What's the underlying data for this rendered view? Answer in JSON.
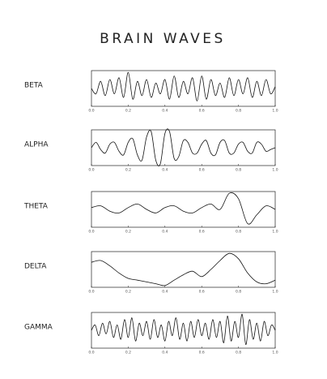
{
  "title": "BRAIN WAVES",
  "chart_data": [
    {
      "type": "line",
      "title": "BETA",
      "color": "#111",
      "xlim": [
        0,
        1
      ],
      "ylim": [
        -1,
        1
      ],
      "xticks": [
        {
          "value": 0,
          "label": "0.0"
        },
        0.2,
        0.4,
        0.6,
        0.8,
        {
          "value": 1,
          "label": "1.0"
        }
      ],
      "x": [
        0,
        0.025,
        0.05,
        0.075,
        0.1,
        0.125,
        0.15,
        0.175,
        0.2,
        0.225,
        0.25,
        0.275,
        0.3,
        0.325,
        0.35,
        0.375,
        0.4,
        0.425,
        0.45,
        0.475,
        0.5,
        0.525,
        0.55,
        0.575,
        0.6,
        0.625,
        0.65,
        0.675,
        0.7,
        0.725,
        0.75,
        0.775,
        0.8,
        0.825,
        0.85,
        0.875,
        0.9,
        0.925,
        0.95,
        0.975,
        1
      ],
      "values": [
        0,
        -0.3,
        0.4,
        -0.4,
        0.5,
        -0.3,
        0.6,
        -0.5,
        0.9,
        -0.6,
        0.4,
        -0.4,
        0.5,
        -0.5,
        0.3,
        -0.3,
        0.5,
        -0.6,
        0.7,
        -0.5,
        0.4,
        -0.3,
        0.6,
        -0.7,
        0.7,
        -0.6,
        0.5,
        -0.4,
        0.3,
        -0.5,
        0.6,
        -0.4,
        0.5,
        -0.3,
        0.6,
        -0.5,
        0.4,
        -0.4,
        0.5,
        -0.3,
        0.1
      ]
    },
    {
      "type": "line",
      "title": "ALPHA",
      "color": "#111",
      "xlim": [
        0,
        1
      ],
      "ylim": [
        -1,
        1
      ],
      "xticks": [
        {
          "value": 0,
          "label": "0.0"
        },
        0.2,
        0.4,
        0.6,
        0.8,
        {
          "value": 1,
          "label": "1.0"
        }
      ],
      "x": [
        0,
        0.025,
        0.05,
        0.075,
        0.1,
        0.125,
        0.15,
        0.175,
        0.2,
        0.225,
        0.25,
        0.275,
        0.3,
        0.325,
        0.35,
        0.375,
        0.4,
        0.425,
        0.45,
        0.475,
        0.5,
        0.525,
        0.55,
        0.575,
        0.6,
        0.625,
        0.65,
        0.675,
        0.7,
        0.725,
        0.75,
        0.775,
        0.8,
        0.825,
        0.85,
        0.875,
        0.9,
        0.925,
        0.95,
        0.975,
        1
      ],
      "values": [
        0,
        0.3,
        -0.1,
        -0.3,
        0.2,
        0.3,
        -0.2,
        -0.4,
        0.3,
        0.5,
        -0.4,
        -0.7,
        0.6,
        0.9,
        -0.7,
        -0.9,
        0.8,
        0.9,
        -0.6,
        -0.5,
        0.4,
        0.3,
        -0.3,
        -0.3,
        0.2,
        0.4,
        -0.3,
        -0.4,
        0.3,
        0.4,
        -0.3,
        -0.3,
        0.2,
        0.3,
        -0.2,
        -0.3,
        0.3,
        0.2,
        -0.2,
        -0.1,
        0
      ]
    },
    {
      "type": "line",
      "title": "THETA",
      "color": "#111",
      "xlim": [
        0,
        1
      ],
      "ylim": [
        -1,
        1
      ],
      "xticks": [
        {
          "value": 0,
          "label": "0.0"
        },
        0.2,
        0.4,
        0.6,
        0.8,
        {
          "value": 1,
          "label": "1.0"
        }
      ],
      "x": [
        0,
        0.05,
        0.1,
        0.15,
        0.2,
        0.25,
        0.3,
        0.35,
        0.4,
        0.45,
        0.5,
        0.55,
        0.6,
        0.65,
        0.7,
        0.75,
        0.8,
        0.85,
        0.9,
        0.95,
        1
      ],
      "values": [
        0.1,
        0.2,
        -0.1,
        -0.2,
        0.1,
        0.3,
        0,
        -0.2,
        0.1,
        0.2,
        -0.1,
        -0.2,
        0.1,
        0.3,
        0,
        0.9,
        0.6,
        -0.8,
        -0.3,
        0.2,
        0
      ]
    },
    {
      "type": "line",
      "title": "DELTA",
      "color": "#111",
      "xlim": [
        0,
        1
      ],
      "ylim": [
        -1,
        1
      ],
      "xticks": [
        {
          "value": 0,
          "label": "0.0"
        },
        0.2,
        0.4,
        0.6,
        0.8,
        {
          "value": 1,
          "label": "1.0"
        }
      ],
      "x": [
        0,
        0.05,
        0.1,
        0.15,
        0.2,
        0.25,
        0.3,
        0.35,
        0.4,
        0.45,
        0.5,
        0.55,
        0.6,
        0.65,
        0.7,
        0.75,
        0.8,
        0.85,
        0.9,
        0.95,
        1
      ],
      "values": [
        0.4,
        0.5,
        0.2,
        -0.2,
        -0.5,
        -0.6,
        -0.7,
        -0.8,
        -0.9,
        -0.6,
        -0.3,
        -0.1,
        -0.4,
        0,
        0.5,
        0.9,
        0.6,
        -0.2,
        -0.7,
        -0.8,
        -0.6
      ]
    },
    {
      "type": "line",
      "title": "GAMMA",
      "color": "#111",
      "xlim": [
        0,
        1
      ],
      "ylim": [
        -1,
        1
      ],
      "xticks": [
        {
          "value": 0,
          "label": "0.0"
        },
        0.2,
        0.4,
        0.6,
        0.8,
        {
          "value": 1,
          "label": "1.0"
        }
      ],
      "x": [
        0,
        0.02,
        0.04,
        0.06,
        0.08,
        0.1,
        0.12,
        0.14,
        0.16,
        0.18,
        0.2,
        0.22,
        0.24,
        0.26,
        0.28,
        0.3,
        0.32,
        0.34,
        0.36,
        0.38,
        0.4,
        0.42,
        0.44,
        0.46,
        0.48,
        0.5,
        0.52,
        0.54,
        0.56,
        0.58,
        0.6,
        0.62,
        0.64,
        0.66,
        0.68,
        0.7,
        0.72,
        0.74,
        0.76,
        0.78,
        0.8,
        0.82,
        0.84,
        0.86,
        0.88,
        0.9,
        0.92,
        0.94,
        0.96,
        0.98,
        1
      ],
      "values": [
        0,
        0.3,
        -0.3,
        0.4,
        -0.2,
        0.5,
        -0.4,
        0.3,
        -0.5,
        0.6,
        -0.4,
        0.7,
        -0.6,
        0.4,
        -0.3,
        0.5,
        -0.5,
        0.6,
        -0.4,
        0.3,
        -0.6,
        0.5,
        -0.3,
        0.7,
        -0.5,
        0.4,
        -0.6,
        0.5,
        -0.4,
        0.6,
        -0.3,
        0.4,
        -0.5,
        0.6,
        -0.4,
        0.5,
        -0.7,
        0.8,
        -0.6,
        0.5,
        -0.4,
        0.9,
        -0.8,
        0.6,
        -0.5,
        0.4,
        -0.6,
        0.5,
        -0.3,
        0.3,
        0
      ]
    }
  ]
}
